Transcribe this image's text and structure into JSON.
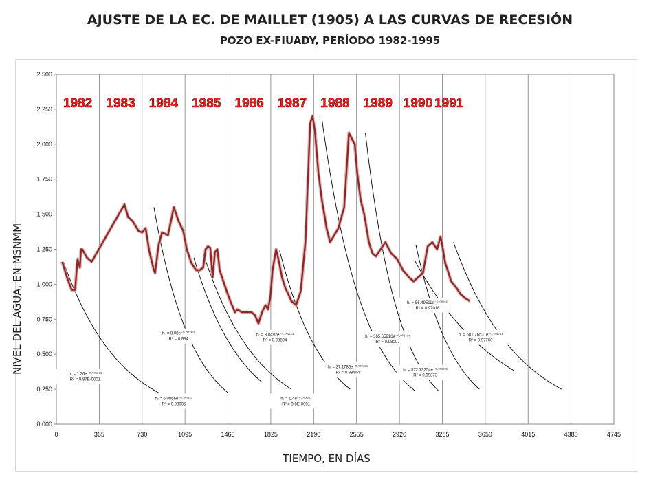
{
  "chart_data": {
    "type": "line",
    "title": "AJUSTE DE LA EC. DE MAILLET (1905) A LAS CURVAS DE RECESIÓN",
    "subtitle": "POZO EX-FIUADY, PERÍODO 1982-1995",
    "xlabel": "TIEMPO, EN DÍAS",
    "ylabel": "NIVEL DEL AGUA, EN MSNMM",
    "xlim": [
      0,
      4745
    ],
    "ylim": [
      0,
      2.5
    ],
    "x_ticks": [
      "0",
      "365",
      "730",
      "1095",
      "1460",
      "1825",
      "2190",
      "2555",
      "2920",
      "3285",
      "3650",
      "4015",
      "4380",
      "4745"
    ],
    "y_ticks": [
      "0.000",
      "0.250",
      "0.500",
      "0.750",
      "1.000",
      "1.250",
      "1.500",
      "1.750",
      "2.000",
      "2.250",
      "2.500"
    ],
    "grid": "vertical",
    "year_labels": [
      {
        "text": "1982",
        "x": 182
      },
      {
        "text": "1983",
        "x": 547
      },
      {
        "text": "1984",
        "x": 912
      },
      {
        "text": "1985",
        "x": 1277
      },
      {
        "text": "1986",
        "x": 1642
      },
      {
        "text": "1987",
        "x": 2007
      },
      {
        "text": "1988",
        "x": 2372
      },
      {
        "text": "1989",
        "x": 2737
      },
      {
        "text": "1990",
        "x": 3077
      },
      {
        "text": "1991",
        "x": 3342
      }
    ],
    "series": [
      {
        "color": "#8b2a2a",
        "x": [
          50,
          90,
          130,
          160,
          180,
          200,
          210,
          220,
          260,
          300,
          580,
          610,
          650,
          700,
          730,
          760,
          790,
          830,
          840,
          870,
          900,
          950,
          1000,
          1040,
          1080,
          1110,
          1150,
          1190,
          1220,
          1250,
          1270,
          1290,
          1310,
          1330,
          1350,
          1370,
          1390,
          1410,
          1450,
          1480,
          1520,
          1540,
          1560,
          1580,
          1620,
          1660,
          1690,
          1720,
          1750,
          1780,
          1800,
          1820,
          1840,
          1870,
          1890,
          1920,
          1950,
          1980,
          2000,
          2040,
          2080,
          2120,
          2160,
          2180,
          2200,
          2230,
          2260,
          2280,
          2300,
          2330,
          2400,
          2450,
          2490,
          2540,
          2560,
          2590,
          2620,
          2640,
          2660,
          2690,
          2720,
          2760,
          2800,
          2850,
          2900,
          2950,
          3000,
          3040,
          3080,
          3120,
          3160,
          3200,
          3240,
          3270,
          3290,
          3310,
          3330,
          3360,
          3400,
          3440,
          3480,
          3520
        ],
        "y": [
          1.16,
          1.05,
          0.96,
          0.96,
          1.18,
          1.12,
          1.25,
          1.25,
          1.19,
          1.16,
          1.57,
          1.48,
          1.45,
          1.38,
          1.37,
          1.4,
          1.24,
          1.1,
          1.08,
          1.28,
          1.37,
          1.35,
          1.55,
          1.45,
          1.38,
          1.25,
          1.15,
          1.1,
          1.1,
          1.12,
          1.25,
          1.27,
          1.26,
          1.05,
          1.23,
          1.25,
          1.1,
          1.05,
          0.95,
          0.88,
          0.8,
          0.82,
          0.81,
          0.8,
          0.8,
          0.8,
          0.78,
          0.72,
          0.8,
          0.85,
          0.82,
          0.9,
          1.1,
          1.25,
          1.18,
          1.05,
          0.97,
          0.92,
          0.88,
          0.85,
          0.95,
          1.3,
          2.15,
          2.2,
          2.1,
          1.8,
          1.6,
          1.5,
          1.4,
          1.3,
          1.4,
          1.55,
          2.08,
          2.0,
          1.8,
          1.6,
          1.5,
          1.4,
          1.3,
          1.22,
          1.2,
          1.25,
          1.3,
          1.22,
          1.18,
          1.1,
          1.05,
          1.02,
          1.05,
          1.08,
          1.27,
          1.3,
          1.25,
          1.34,
          1.25,
          1.15,
          1.1,
          1.02,
          0.98,
          0.93,
          0.9,
          0.88
        ]
      }
    ],
    "fit_curves": [
      {
        "x0": 60,
        "y0": 1.16,
        "x_end": 870,
        "y_end": 0.225,
        "alpha": 0.001883
      },
      {
        "x0": 830,
        "y0": 1.55,
        "x_end": 1460,
        "y_end": 0.225,
        "alpha": 0.003124
      },
      {
        "x0": 1170,
        "y0": 1.19,
        "x_end": 1750,
        "y_end": 0.3,
        "alpha": 0.002372
      },
      {
        "x0": 1250,
        "y0": 1.22,
        "x_end": 2000,
        "y_end": 0.25,
        "alpha": 0.002113
      },
      {
        "x0": 1900,
        "y0": 1.24,
        "x_end": 2500,
        "y_end": 0.25,
        "alpha": 0.002661
      },
      {
        "x0": 2260,
        "y0": 2.18,
        "x_end": 3050,
        "y_end": 0.24,
        "alpha": 0.002789
      },
      {
        "x0": 2630,
        "y0": 2.08,
        "x_end": 3250,
        "y_end": 0.24,
        "alpha": 0.003485
      },
      {
        "x0": 3060,
        "y0": 1.28,
        "x_end": 3600,
        "y_end": 0.25,
        "alpha": 0.003028
      },
      {
        "x0": 3050,
        "y0": 1.17,
        "x_end": 3900,
        "y_end": 0.38,
        "alpha": 0.001322
      },
      {
        "x0": 3380,
        "y0": 1.3,
        "x_end": 4300,
        "y_end": 0.25,
        "alpha": 0.001791
      }
    ],
    "annotations": [
      {
        "line1": "hₜ = 1.26e⁻⁰·⁰⁰¹⁸⁸³",
        "line2": "R² = 9.97E-0001",
        "x": 245,
        "y": 0.35
      },
      {
        "line1": "hₜ = 6.0866e⁻⁰·⁰⁰³¹²⁴",
        "line2": "R² = 0.98005",
        "x": 1000,
        "y": 0.175
      },
      {
        "line1": "hₜ = 8.08e⁻⁰·⁰⁰²³⁷²",
        "line2": "R² = 0.984",
        "x": 1040,
        "y": 0.64
      },
      {
        "line1": "hₜ = 8.8492e⁻⁰·⁰⁰²¹¹³",
        "line2": "R² = 0.98894",
        "x": 1860,
        "y": 0.63
      },
      {
        "line1": "hₜ = 1.4e⁻⁰·⁰⁰²⁶⁶¹",
        "line2": "R² = 9.8E-0001",
        "x": 2040,
        "y": 0.175
      },
      {
        "line1": "hₜ = 27.1786e⁻⁰·⁰⁰²⁷⁸⁹",
        "line2": "R² = 0.99444",
        "x": 2480,
        "y": 0.4
      },
      {
        "line1": "hₜ = 365.65216e⁻⁰·⁰⁰³⁴⁸⁵",
        "line2": "R² = 0.98007",
        "x": 2820,
        "y": 0.62
      },
      {
        "line1": "hₜ = 56.49511e⁻⁰·⁰⁰¹³²²",
        "line2": "R² = 0.97016",
        "x": 3160,
        "y": 0.86
      },
      {
        "line1": "hₜ = 572.73254e⁻⁰·⁰⁰³⁰²⁸",
        "line2": "R² = 0.99873",
        "x": 3140,
        "y": 0.38
      },
      {
        "line1": "hₜ = 581.76531e⁻⁰·⁰⁰¹⁷⁹¹",
        "line2": "R² = 0.97760",
        "x": 3610,
        "y": 0.63
      }
    ]
  }
}
